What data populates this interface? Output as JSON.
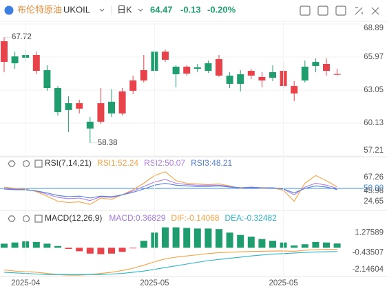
{
  "header": {
    "name": "布伦特原油",
    "symbol": "UKOIL",
    "period": "日K",
    "price": "64.47",
    "change": "-0.13",
    "change_pct": "-0.20%"
  },
  "chart_data": [
    {
      "type": "candlestick",
      "up_color": "#e8424a",
      "down_color": "#1f9d6f",
      "open": [
        65.54,
        66.03,
        66.15,
        64.75,
        64.81,
        63.23,
        61.89,
        61.41,
        60.25,
        60.25,
        62.02,
        60.98,
        62.99,
        63.9,
        66.45,
        65.73,
        65.12,
        64.51,
        65.06,
        65.42,
        64.33,
        64.33,
        64.45,
        64.33,
        63.9,
        64.63,
        63.41,
        62.75,
        65.12,
        65.54,
        64.75,
        64.4
      ],
      "high": [
        67.72,
        66.45,
        66.64,
        66.45,
        65.24,
        63.41,
        62.5,
        62.2,
        60.68,
        63.23,
        63.11,
        63.23,
        64.33,
        66.15,
        66.64,
        66.64,
        65.24,
        65.24,
        65.36,
        65.66,
        66.15,
        64.63,
        64.81,
        64.93,
        64.63,
        65.24,
        65.54,
        63.84,
        65.66,
        65.85,
        65.85,
        64.93
      ],
      "low": [
        64.63,
        64.93,
        65.54,
        64.45,
        62.99,
        60.8,
        59.34,
        60.98,
        58.38,
        60.07,
        60.68,
        60.8,
        62.69,
        63.72,
        64.45,
        65.54,
        63.29,
        64.33,
        64.63,
        64.57,
        64.21,
        63.23,
        62.93,
        64.02,
        63.29,
        63.84,
        63.23,
        62.08,
        63.72,
        64.63,
        64.33,
        64.35
      ],
      "close": [
        67.37,
        65.42,
        65.91,
        66.15,
        63.23,
        61.1,
        61.29,
        61.89,
        59.65,
        61.89,
        60.98,
        62.93,
        63.9,
        64.81,
        64.75,
        66.45,
        64.45,
        65.12,
        64.93,
        64.75,
        65.79,
        63.6,
        63.6,
        64.75,
        64.21,
        64.14,
        64.75,
        63.41,
        63.9,
        65.18,
        65.36,
        64.47
      ],
      "ylim": [
        57.15,
        69.07
      ],
      "yticks": [
        68.89,
        65.97,
        63.05,
        60.13,
        57.21
      ],
      "grid": true,
      "annotations": [
        {
          "text": "67.72",
          "x": 0,
          "y": 67.72
        },
        {
          "text": "58.38",
          "x": 8,
          "y": 58.38
        }
      ]
    },
    {
      "type": "line",
      "title": "RSI(7,14,21)",
      "ylim": [
        20,
        80
      ],
      "yticks": [
        67.26,
        {
          "value": 50,
          "label": "50.00",
          "color": "#3c8ee6"
        },
        45.96,
        24.65
      ],
      "series": [
        {
          "name": "RSI1:52.24",
          "color": "#f5a142",
          "values": [
            52,
            50,
            49,
            45,
            38,
            30,
            28,
            29,
            25,
            35,
            33,
            40,
            48,
            58,
            70,
            76,
            62,
            58,
            57,
            56,
            57,
            54,
            50,
            52,
            50,
            51,
            47,
            30,
            58,
            70,
            62,
            52.24
          ]
        },
        {
          "name": "RSI2:50.07",
          "color": "#b07de0",
          "values": [
            50,
            49,
            48,
            46,
            41,
            36,
            34,
            35,
            31,
            37,
            36,
            40,
            46,
            53,
            60,
            64,
            58,
            56,
            55,
            55,
            55,
            53,
            51,
            52,
            51,
            51,
            49,
            40,
            52,
            58,
            55,
            50.07
          ]
        },
        {
          "name": "RSI3:48.21",
          "color": "#4f7fd6",
          "values": [
            49,
            48,
            48,
            46,
            43,
            39,
            37,
            38,
            35,
            38,
            37,
            40,
            44,
            49,
            55,
            58,
            55,
            54,
            53,
            53,
            54,
            52,
            51,
            51,
            51,
            51,
            49,
            43,
            50,
            54,
            52,
            48.21
          ]
        }
      ]
    },
    {
      "type": "combo",
      "title": "MACD(12,26,9)",
      "ylim": [
        -2.4,
        2.2
      ],
      "yticks": [
        1.27589,
        -0.43507,
        -2.14604
      ],
      "categories": [
        null,
        null,
        "2025-04",
        null,
        null,
        null,
        null,
        null,
        null,
        null,
        null,
        null,
        null,
        null,
        "2025-05",
        null,
        null,
        null,
        null,
        null,
        null,
        null,
        null,
        null,
        null,
        null,
        "2025-05",
        null,
        null,
        null,
        null,
        null
      ],
      "series": [
        {
          "name": "MACD:0.36829",
          "type": "bar",
          "color": "#a67be0",
          "up_color": "#1f9d6f",
          "down_color": "#e8424a",
          "values": [
            0.35,
            0.45,
            0.55,
            0.5,
            0.35,
            0.15,
            -0.1,
            -0.3,
            -0.5,
            -0.55,
            -0.5,
            -0.35,
            -0.05,
            0.6,
            1.3,
            1.75,
            1.75,
            1.7,
            1.65,
            1.65,
            1.6,
            1.3,
            1.1,
            0.95,
            0.75,
            0.6,
            0.45,
            0.2,
            0.3,
            0.5,
            0.45,
            0.36829
          ]
        },
        {
          "name": "DIF:-0.14068",
          "type": "line",
          "color": "#f5a142",
          "values": [
            -1.9,
            -2.0,
            -2.05,
            -2.1,
            -2.2,
            -2.3,
            -2.35,
            -2.35,
            -2.3,
            -2.2,
            -2.1,
            -1.95,
            -1.75,
            -1.5,
            -1.2,
            -0.95,
            -0.8,
            -0.7,
            -0.6,
            -0.5,
            -0.42,
            -0.38,
            -0.35,
            -0.32,
            -0.3,
            -0.28,
            -0.27,
            -0.3,
            -0.22,
            -0.16,
            -0.13,
            -0.14068
          ]
        },
        {
          "name": "DEA:-0.32482",
          "type": "line",
          "color": "#2bb5c8",
          "values": [
            -2.1,
            -2.15,
            -2.2,
            -2.25,
            -2.3,
            -2.3,
            -2.3,
            -2.3,
            -2.3,
            -2.3,
            -2.25,
            -2.2,
            -2.1,
            -2.0,
            -1.85,
            -1.7,
            -1.55,
            -1.4,
            -1.25,
            -1.1,
            -1.0,
            -0.9,
            -0.8,
            -0.7,
            -0.62,
            -0.55,
            -0.5,
            -0.45,
            -0.4,
            -0.36,
            -0.34,
            -0.32482
          ]
        }
      ]
    }
  ]
}
